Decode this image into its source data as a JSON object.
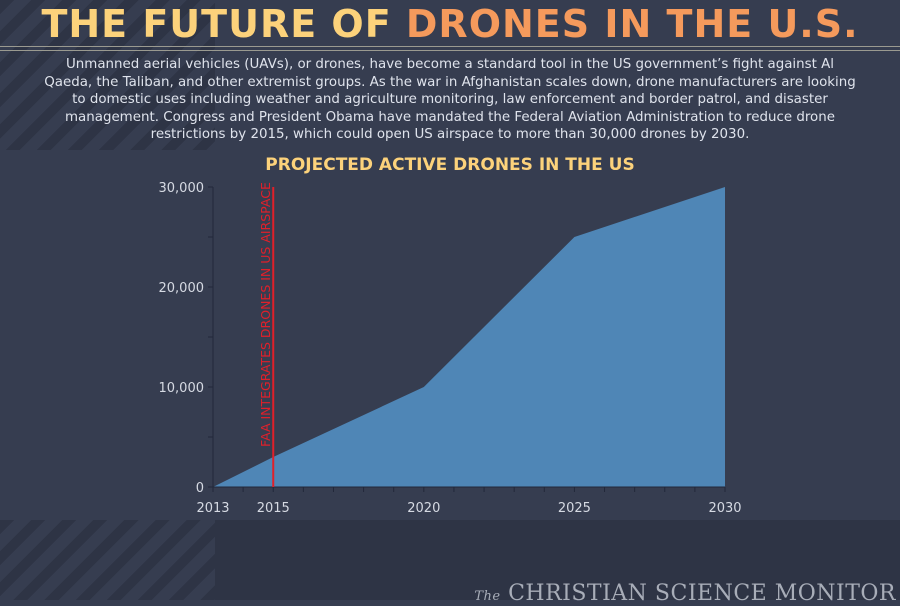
{
  "header": {
    "title_part1": "THE FUTURE OF ",
    "title_part2": "DRONES IN THE U.S."
  },
  "intro": "Unmanned aerial vehicles (UAVs), or drones, have become a standard tool in the US government’s fight against Al Qaeda, the Taliban, and other extremist groups. As the war in Afghanistan scales down, drone manufacturers are looking to domestic uses including weather and agriculture monitoring, law enforcement and border patrol, and disaster management. Congress and President Obama have mandated the Federal Aviation Administration to reduce drone restrictions by 2015, which could open US airspace to more than 30,000 drones by 2030.",
  "chart_data": {
    "type": "area",
    "title": "PROJECTED ACTIVE DRONES IN THE US",
    "x": [
      2013,
      2015,
      2020,
      2025,
      2030
    ],
    "values": [
      0,
      3000,
      10000,
      25000,
      30000
    ],
    "xlim": [
      2013,
      2030
    ],
    "ylim": [
      0,
      30000
    ],
    "x_ticks": [
      "2013",
      "2015",
      "2020",
      "2025",
      "2030"
    ],
    "y_ticks": [
      "0",
      "10,000",
      "20,000",
      "30,000"
    ],
    "grid": false,
    "annotation": {
      "x": 2015,
      "label": "FAA INTEGRATES DRONES IN US AIRSPACE",
      "color": "#e0202a"
    },
    "fill_color": "#4f86b6"
  },
  "footer": {
    "logo_the": "The",
    "logo_name": "CHRISTIAN SCIENCE MONITOR"
  }
}
